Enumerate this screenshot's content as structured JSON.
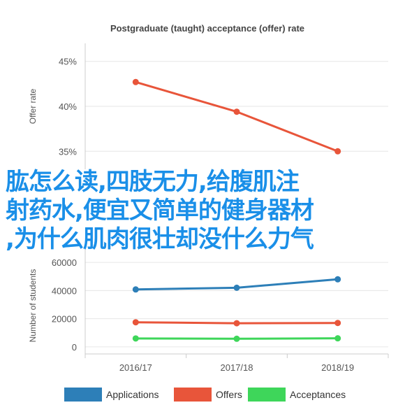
{
  "chart_data": [
    {
      "type": "line",
      "title": "Postgraduate (taught) acceptance (offer) rate",
      "ylabel": "Offer rate",
      "xlabel": "",
      "categories": [
        "2016/17",
        "2017/18",
        "2018/19"
      ],
      "series": [
        {
          "name": "",
          "color": "#e8553a",
          "values": [
            42.7,
            39.4,
            35.0
          ]
        }
      ],
      "ylim": [
        33,
        47
      ],
      "yticks": [
        "45%",
        "40%",
        "35%"
      ],
      "ytick_values": [
        45,
        40,
        35
      ],
      "grid": true
    },
    {
      "type": "line",
      "title": "",
      "ylabel": "Number of students",
      "xlabel": "",
      "categories": [
        "2016/17",
        "2017/18",
        "2018/19"
      ],
      "series": [
        {
          "name": "Applications",
          "color": "#2d7fb8",
          "values": [
            40800,
            42000,
            48000
          ]
        },
        {
          "name": "Offers",
          "color": "#e8553a",
          "values": [
            17500,
            16800,
            17000
          ]
        },
        {
          "name": "Acceptances",
          "color": "#3ed65a",
          "values": [
            6000,
            5800,
            6100
          ]
        }
      ],
      "ylim": [
        -5000,
        70000
      ],
      "yticks": [
        "60000",
        "40000",
        "20000",
        "0"
      ],
      "ytick_values": [
        60000,
        40000,
        20000,
        0
      ],
      "grid": true,
      "legend": "bottom"
    }
  ],
  "overlay": {
    "line1": "肱怎么读,四肢无力,给腹肌注",
    "line2": "射药水,便宜又简单的健身器材",
    "line3": ",为什么肌肉很壮却没什么力气"
  }
}
